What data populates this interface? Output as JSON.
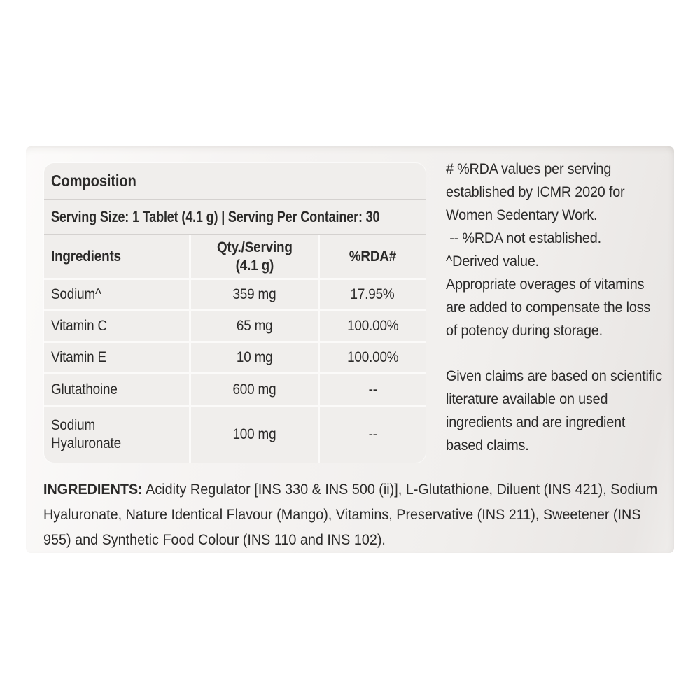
{
  "panel": {
    "title": "Composition",
    "serving_line": "Serving Size: 1 Tablet (4.1 g) | Serving Per Container: 30",
    "table": {
      "headers": {
        "ingredients": "Ingredients",
        "qty": "Qty./Serving\n(4.1 g)",
        "rda": "%RDA#"
      },
      "rows": [
        {
          "ingredient": "Sodium^",
          "qty": "359 mg",
          "rda": "17.95%"
        },
        {
          "ingredient": "Vitamin C",
          "qty": "65 mg",
          "rda": "100.00%"
        },
        {
          "ingredient": "Vitamin E",
          "qty": "10 mg",
          "rda": "100.00%"
        },
        {
          "ingredient": "Glutathoine",
          "qty": "600 mg",
          "rda": "--"
        },
        {
          "ingredient": "Sodium Hyaluronate",
          "qty": "100 mg",
          "rda": "--"
        }
      ]
    }
  },
  "notes": {
    "rda_footnote": "# %RDA values per serving\nestablished by ICMR 2020 for\nWomen Sedentary Work.\n -- %RDA not established.\n^Derived value.\nAppropriate overages of vitamins\nare added to compensate the loss\nof potency during storage.",
    "claims": "Given claims are based on scientific\nliterature available on used\ningredients and are ingredient\nbased claims."
  },
  "ingredients": {
    "label": "INGREDIENTS:",
    "text": "Acidity Regulator [INS 330 & INS 500 (ii)], L-Glutathione, Diluent (INS 421), Sodium Hyaluronate, Nature Identical Flavour (Mango), Vitamins, Preservative (INS 211), Sweetener (INS 955) and Synthetic Food Colour (INS 110 and INS 102)."
  },
  "colors": {
    "text": "#2b2a29",
    "label_background": "#f1efed",
    "panel_background": "#f0eeec",
    "band_divider": "#d4d1cf",
    "grid_line": "#fbfaf9",
    "page_background": "#ffffff"
  }
}
